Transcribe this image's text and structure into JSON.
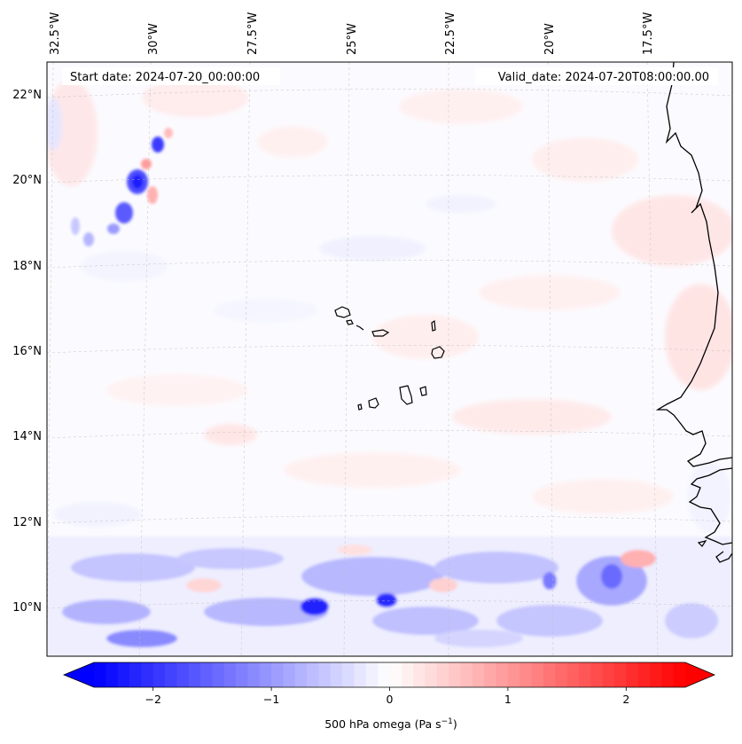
{
  "map": {
    "start_date": "Start date: 2024-07-20_00:00:00",
    "valid_date": "Valid_date: 2024-07-20T08:00:00.00",
    "variable_label": "500 hPa omega (Pa s",
    "variable_exp": "−1",
    "variable_close": ")",
    "longitude_labels": [
      "32.5°W",
      "30°W",
      "27.5°W",
      "25°W",
      "22.5°W",
      "20°W",
      "17.5°W"
    ],
    "latitude_labels": [
      "22°N",
      "20°N",
      "18°N",
      "16°N",
      "14°N",
      "12°N",
      "10°N"
    ],
    "extent": {
      "lon_min": -32.6,
      "lon_max": -16.0,
      "lat_min": 8.9,
      "lat_max": 22.8
    },
    "colorbar": {
      "ticks": [
        "−2",
        "−1",
        "0",
        "1",
        "2"
      ],
      "tick_values": [
        -2,
        -1,
        0,
        1,
        2
      ],
      "range": [
        -2.5,
        2.5
      ],
      "colormap": "bwr",
      "extend": "both",
      "min_color": "#0000ff",
      "mid_color": "#ffffff",
      "max_color": "#ff0000"
    },
    "features": [
      "coastline-west-africa",
      "cape-verde-islands"
    ],
    "gridlines": "dashed-light-gray"
  }
}
